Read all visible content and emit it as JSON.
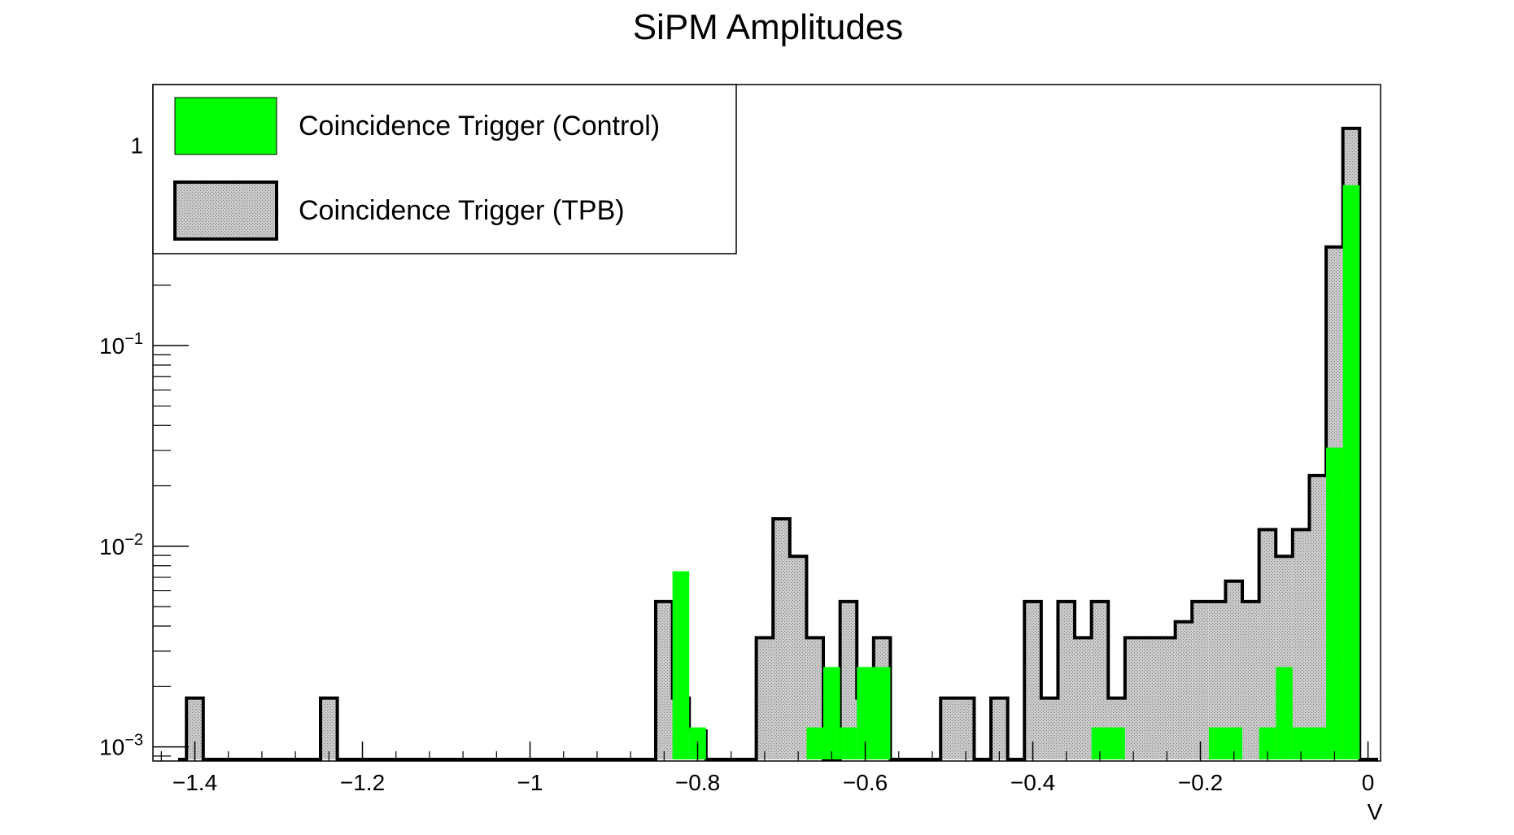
{
  "chart_data": {
    "type": "histogram",
    "title": "SiPM Amplitudes",
    "xlabel": "V",
    "ylabel": "",
    "yscale": "log",
    "xlim": [
      -1.45,
      0.015
    ],
    "ylim": [
      0.00085,
      2.0
    ],
    "grid": false,
    "legend_position": "top-left",
    "x_ticks": [
      {
        "value": -1.4,
        "label": "−1.4"
      },
      {
        "value": -1.2,
        "label": "−1.2"
      },
      {
        "value": -1.0,
        "label": "−1"
      },
      {
        "value": -0.8,
        "label": "−0.8"
      },
      {
        "value": -0.6,
        "label": "−0.6"
      },
      {
        "value": -0.4,
        "label": "−0.4"
      },
      {
        "value": -0.2,
        "label": "−0.2"
      },
      {
        "value": 0.0,
        "label": "0"
      }
    ],
    "y_ticks": [
      {
        "value": 0.001,
        "base": "10",
        "exp": "−3"
      },
      {
        "value": 0.01,
        "base": "10",
        "exp": "−2"
      },
      {
        "value": 0.1,
        "base": "10",
        "exp": "−1"
      },
      {
        "value": 1,
        "base": "1",
        "exp": ""
      }
    ],
    "series": [
      {
        "name": "Coincidence Trigger (TPB)",
        "color": "#c8c8c8",
        "line_color": "#000000",
        "bins": [
          [
            -1.41,
            -1.39,
            0.00175
          ],
          [
            -1.25,
            -1.23,
            0.00175
          ],
          [
            -0.85,
            -0.83,
            0.0053
          ],
          [
            -0.83,
            -0.81,
            0.00175
          ],
          [
            -0.81,
            -0.79,
            0.0012
          ],
          [
            -0.73,
            -0.71,
            0.0035
          ],
          [
            -0.71,
            -0.69,
            0.0137
          ],
          [
            -0.69,
            -0.67,
            0.0089
          ],
          [
            -0.67,
            -0.65,
            0.0035
          ],
          [
            -0.63,
            -0.61,
            0.0053
          ],
          [
            -0.61,
            -0.59,
            0.00175
          ],
          [
            -0.59,
            -0.57,
            0.0035
          ],
          [
            -0.51,
            -0.49,
            0.00175
          ],
          [
            -0.49,
            -0.47,
            0.00175
          ],
          [
            -0.45,
            -0.43,
            0.00175
          ],
          [
            -0.41,
            -0.39,
            0.0053
          ],
          [
            -0.39,
            -0.37,
            0.00175
          ],
          [
            -0.37,
            -0.35,
            0.0053
          ],
          [
            -0.35,
            -0.33,
            0.0035
          ],
          [
            -0.33,
            -0.31,
            0.0053
          ],
          [
            -0.31,
            -0.29,
            0.00175
          ],
          [
            -0.29,
            -0.27,
            0.0035
          ],
          [
            -0.27,
            -0.25,
            0.0035
          ],
          [
            -0.25,
            -0.23,
            0.0035
          ],
          [
            -0.23,
            -0.21,
            0.0042
          ],
          [
            -0.21,
            -0.19,
            0.0053
          ],
          [
            -0.19,
            -0.17,
            0.0053
          ],
          [
            -0.17,
            -0.15,
            0.0067
          ],
          [
            -0.15,
            -0.13,
            0.0053
          ],
          [
            -0.13,
            -0.11,
            0.0121
          ],
          [
            -0.11,
            -0.09,
            0.0089
          ],
          [
            -0.09,
            -0.07,
            0.0121
          ],
          [
            -0.07,
            -0.05,
            0.0225
          ],
          [
            -0.05,
            -0.03,
            0.31
          ],
          [
            -0.03,
            -0.01,
            1.21
          ]
        ]
      },
      {
        "name": "Coincidence Trigger (Control)",
        "color": "#00ff00",
        "line_color": "#00ff00",
        "bins": [
          [
            -0.83,
            -0.81,
            0.0075
          ],
          [
            -0.81,
            -0.79,
            0.00125
          ],
          [
            -0.67,
            -0.65,
            0.00125
          ],
          [
            -0.65,
            -0.63,
            0.0025
          ],
          [
            -0.63,
            -0.61,
            0.00125
          ],
          [
            -0.61,
            -0.57,
            0.0025
          ],
          [
            -0.33,
            -0.29,
            0.00125
          ],
          [
            -0.19,
            -0.15,
            0.00125
          ],
          [
            -0.13,
            -0.11,
            0.00125
          ],
          [
            -0.11,
            -0.09,
            0.0025
          ],
          [
            -0.09,
            -0.05,
            0.00125
          ],
          [
            -0.05,
            -0.03,
            0.031
          ],
          [
            -0.03,
            -0.01,
            0.63
          ]
        ]
      }
    ],
    "legend": [
      {
        "label": "Coincidence Trigger (Control)",
        "series": 1
      },
      {
        "label": "Coincidence Trigger (TPB)",
        "series": 0
      }
    ]
  }
}
